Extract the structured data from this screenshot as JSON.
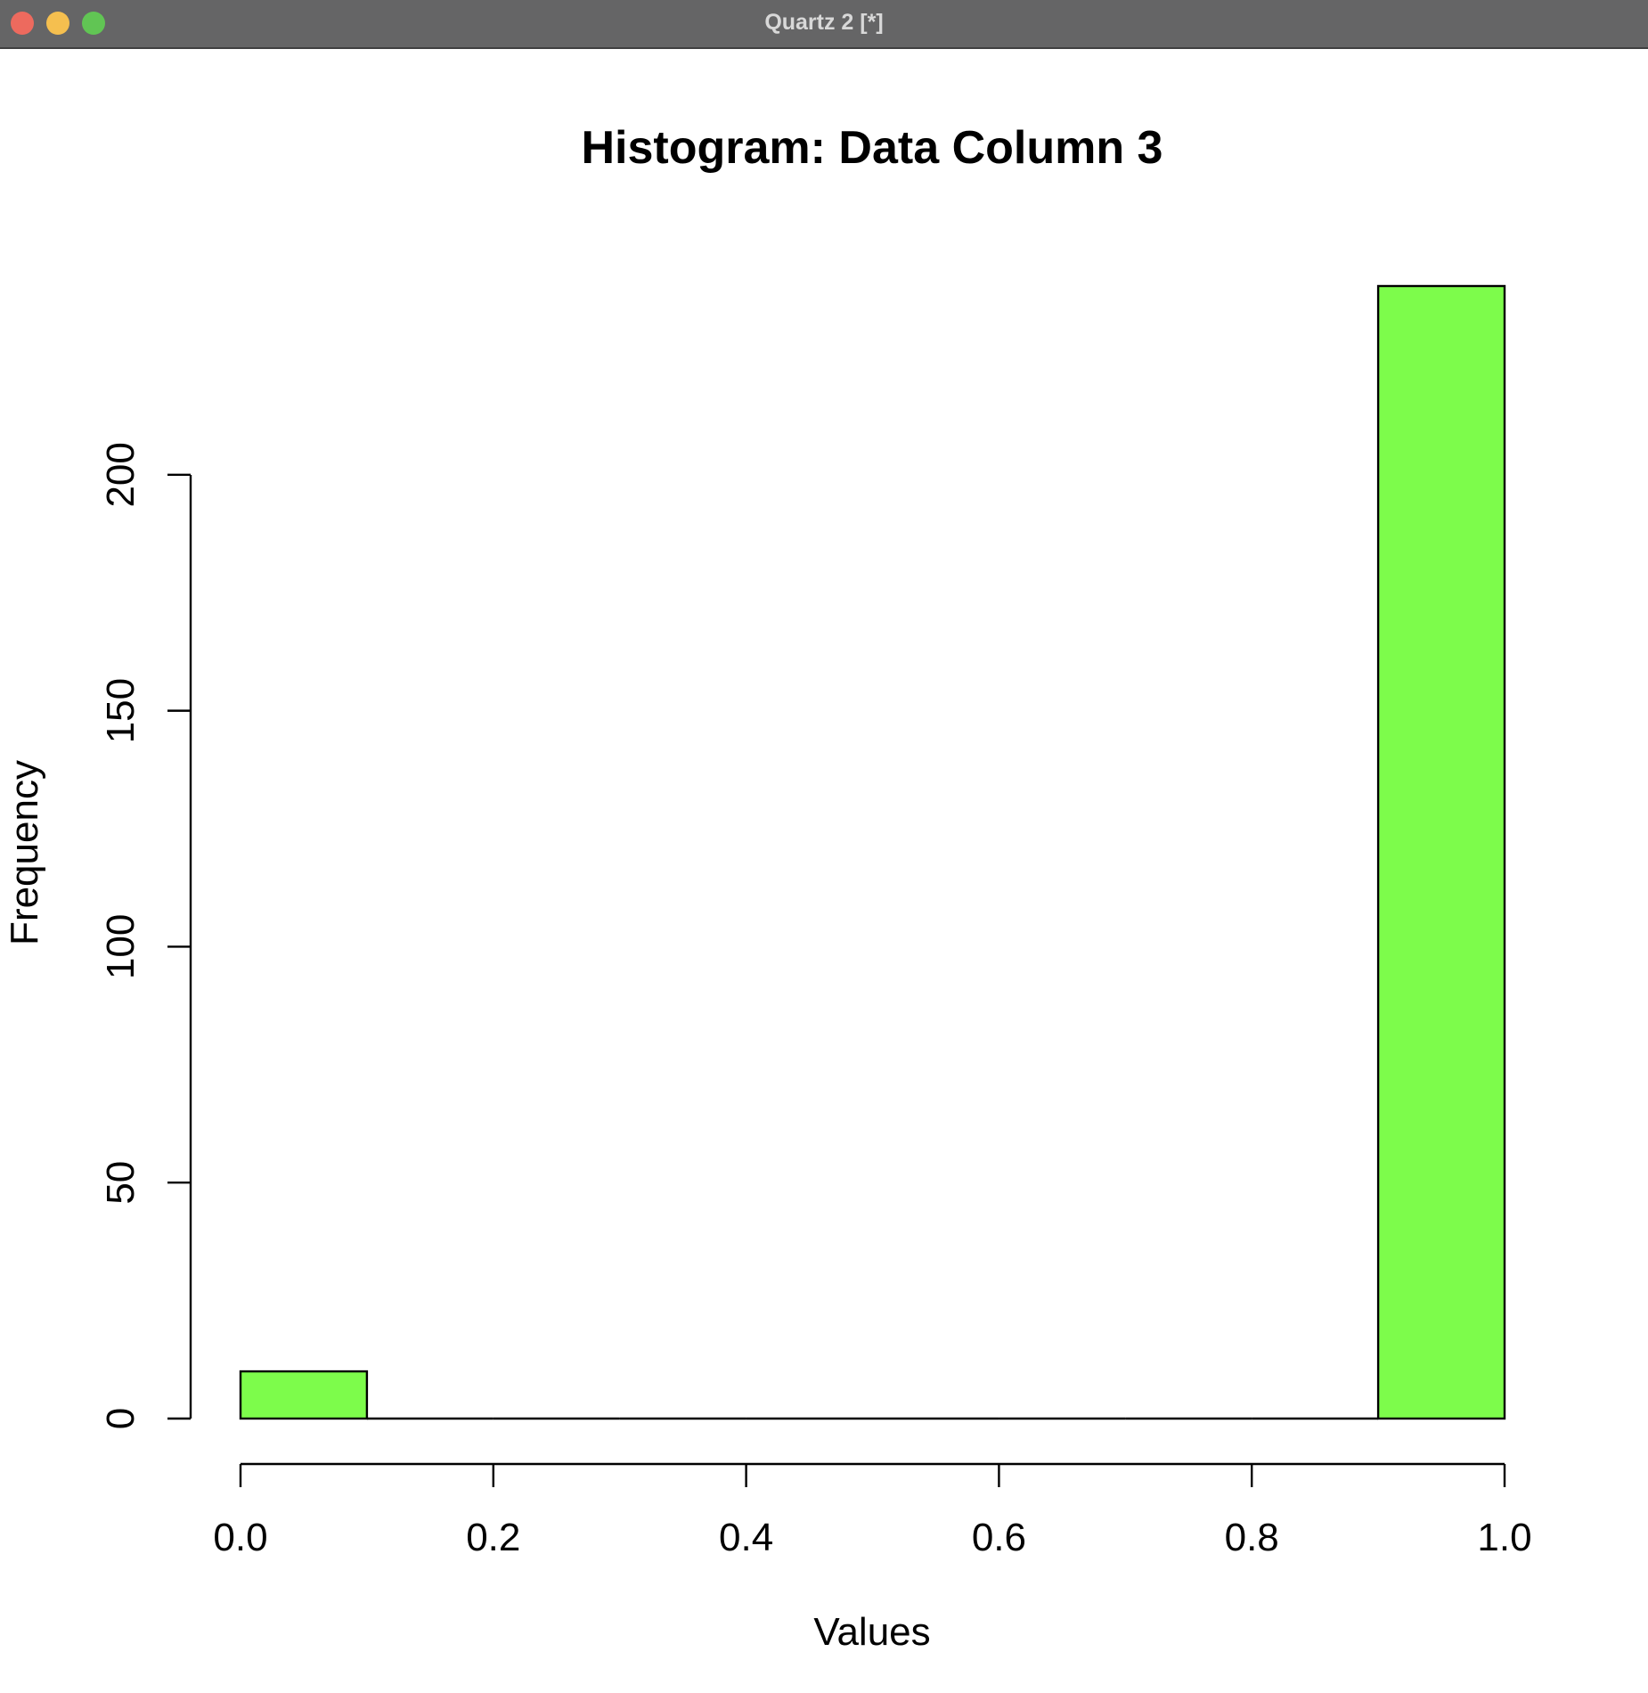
{
  "window": {
    "title": "Quartz 2 [*]",
    "controls": [
      "close-button",
      "minimize-button",
      "zoom-button"
    ]
  },
  "colors": {
    "bar_fill": "#7dfc4b",
    "bar_stroke": "#000000",
    "titlebar": "#656566"
  },
  "chart_data": {
    "type": "bar",
    "title": "Histogram: Data Column 3",
    "xlabel": "Values",
    "ylabel": "Frequency",
    "xlim": [
      0,
      1
    ],
    "ylim": [
      0,
      240
    ],
    "xticks": [
      "0.0",
      "0.2",
      "0.4",
      "0.6",
      "0.8",
      "1.0"
    ],
    "yticks": [
      "0",
      "50",
      "100",
      "150",
      "200"
    ],
    "bins": [
      {
        "start": 0.0,
        "end": 0.1,
        "count": 10
      },
      {
        "start": 0.1,
        "end": 0.2,
        "count": 0
      },
      {
        "start": 0.2,
        "end": 0.3,
        "count": 0
      },
      {
        "start": 0.3,
        "end": 0.4,
        "count": 0
      },
      {
        "start": 0.4,
        "end": 0.5,
        "count": 0
      },
      {
        "start": 0.5,
        "end": 0.6,
        "count": 0
      },
      {
        "start": 0.6,
        "end": 0.7,
        "count": 0
      },
      {
        "start": 0.7,
        "end": 0.8,
        "count": 0
      },
      {
        "start": 0.8,
        "end": 0.9,
        "count": 0
      },
      {
        "start": 0.9,
        "end": 1.0,
        "count": 240
      }
    ],
    "grid": false,
    "legend": "none"
  }
}
